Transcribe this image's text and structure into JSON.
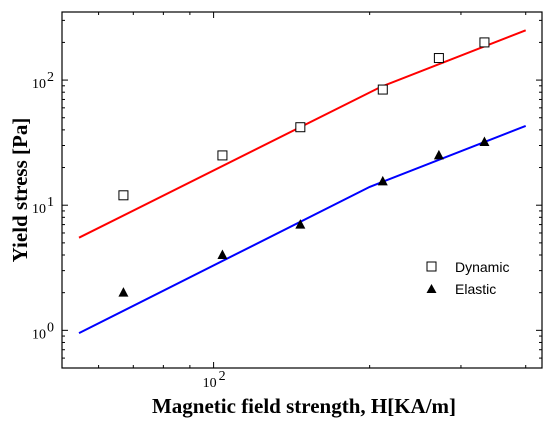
{
  "chart_data": {
    "type": "scatter",
    "xlabel": "Magnetic field strength, H[KA/m]",
    "ylabel": "Yield stress [Pa]",
    "xscale": "log",
    "yscale": "log",
    "xlim": [
      51,
      430
    ],
    "ylim": [
      0.5,
      350
    ],
    "x_ticks": [
      {
        "value": 100,
        "base": "10",
        "exp": "2"
      }
    ],
    "y_ticks": [
      {
        "value": 1,
        "base": "10",
        "exp": "0"
      },
      {
        "value": 10,
        "base": "10",
        "exp": "1"
      },
      {
        "value": 100,
        "base": "10",
        "exp": "2"
      }
    ],
    "grid": false,
    "legend_position": "right",
    "series": [
      {
        "name": "Dynamic",
        "marker": "open-square",
        "color": "#000000",
        "points": [
          [
            67,
            12
          ],
          [
            104,
            25
          ],
          [
            147,
            42
          ],
          [
            212,
            84
          ],
          [
            272,
            150
          ],
          [
            333,
            200
          ]
        ]
      },
      {
        "name": "Elastic",
        "marker": "filled-triangle",
        "color": "#000000",
        "points": [
          [
            67,
            2.0
          ],
          [
            104,
            4.0
          ],
          [
            147,
            7.0
          ],
          [
            212,
            15.5
          ],
          [
            272,
            25
          ],
          [
            333,
            32
          ]
        ]
      }
    ],
    "fit_lines": [
      {
        "color": "#ff0000",
        "points": [
          [
            55,
            5.5
          ],
          [
            210,
            88
          ],
          [
            400,
            250
          ]
        ]
      },
      {
        "color": "#0000ff",
        "points": [
          [
            55,
            0.95
          ],
          [
            200,
            14
          ],
          [
            400,
            43
          ]
        ]
      }
    ]
  }
}
